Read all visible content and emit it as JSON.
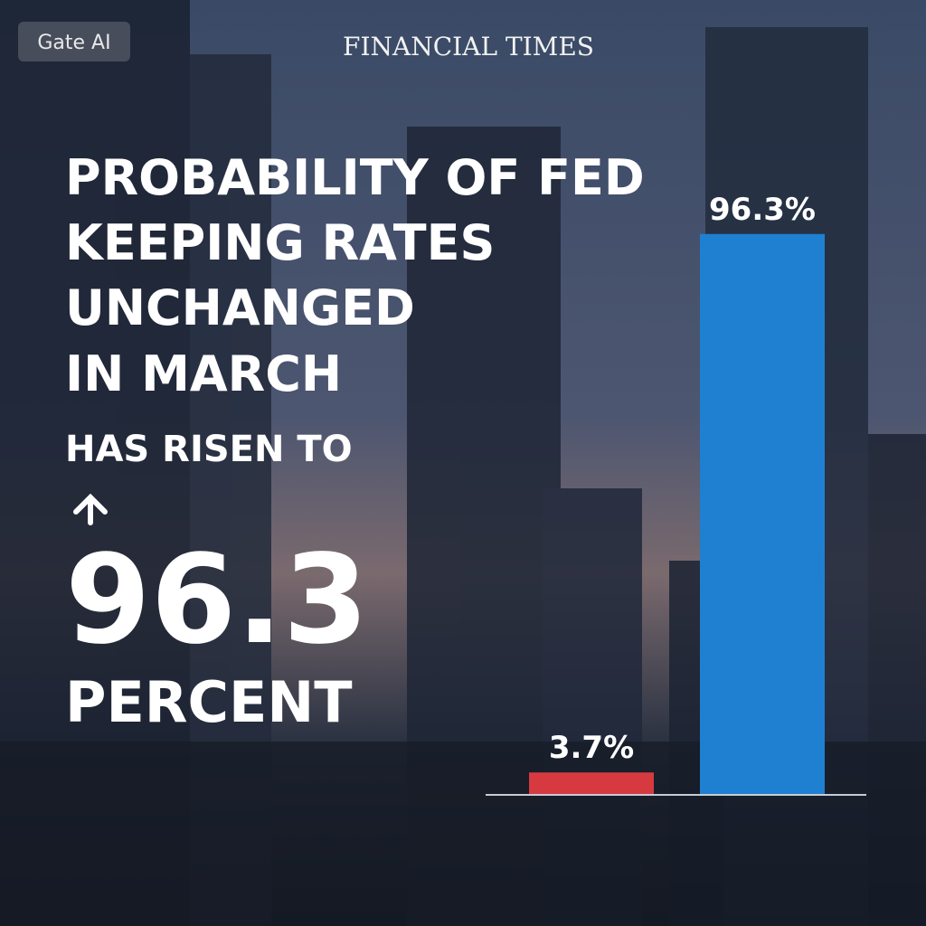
{
  "brand": "Gate AI",
  "publisher": "FINANCIAL TIMES",
  "headline": [
    "PROBABILITY OF FED",
    "KEEPING RATES",
    "UNCHANGED",
    "IN MARCH"
  ],
  "subhead": "HAS RISEN TO",
  "figure": 96.3,
  "figure_unit": "PERCENT",
  "chart_data": {
    "type": "bar",
    "categories": [
      null,
      null
    ],
    "values": [
      3.7,
      96.3
    ],
    "value_labels": [
      "3.7%",
      "96.3%"
    ],
    "colors": [
      "#d63a40",
      "#1f80d2"
    ],
    "ylim": [
      0,
      100
    ]
  }
}
